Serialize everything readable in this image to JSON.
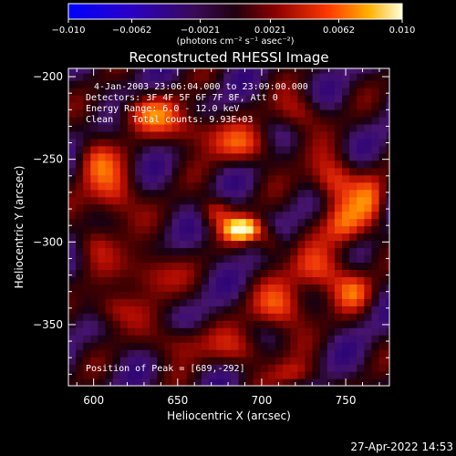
{
  "chart_data": {
    "type": "heatmap",
    "title": "Reconstructed RHESSI Image",
    "xlabel": "Heliocentric X (arcsec)",
    "ylabel": "Heliocentric Y (arcsec)",
    "xlim": [
      585,
      776
    ],
    "ylim": [
      -387,
      -195
    ],
    "x_ticks": [
      600,
      650,
      700,
      750
    ],
    "y_ticks": [
      -200,
      -250,
      -300,
      -350
    ],
    "colorbar": {
      "min": -0.01,
      "max": 0.01,
      "ticks": [
        -0.01,
        -0.0062,
        -0.0021,
        0.0021,
        0.0062,
        0.01
      ],
      "tick_labels": [
        "−0.010",
        "−0.0062",
        "−0.0021",
        "0.0021",
        "0.0062",
        "0.010"
      ],
      "unit_label": "(photons cm⁻² s⁻¹ asec⁻²)"
    },
    "annotations": {
      "time_range": "4-Jan-2003 23:06:04.000 to 23:09:00.000",
      "detectors": "Detectors: 3F 4F 5F 6F 7F 8F, Att 0",
      "energy_range": "Energy Range: 6.0 - 12.0 keV",
      "clean": "Clean",
      "total_counts": "Total counts: 9.93E+03",
      "peak": "Position of Peak = [689,-292]"
    },
    "peak": {
      "x": 689,
      "y": -292
    },
    "sources": [
      {
        "x": 689,
        "y": -292,
        "amp": 1.0,
        "sx": 8,
        "sy": 5
      },
      {
        "x": 672,
        "y": -281,
        "amp": 0.45,
        "sx": 7,
        "sy": 6
      },
      {
        "x": 705,
        "y": -300,
        "amp": 0.4,
        "sx": 6,
        "sy": 6
      },
      {
        "x": 612,
        "y": -272,
        "amp": 0.55,
        "sx": 10,
        "sy": 12
      },
      {
        "x": 600,
        "y": -250,
        "amp": 0.45,
        "sx": 8,
        "sy": 10
      },
      {
        "x": 632,
        "y": -222,
        "amp": 0.5,
        "sx": 14,
        "sy": 8
      },
      {
        "x": 660,
        "y": -232,
        "amp": 0.45,
        "sx": 12,
        "sy": 8
      },
      {
        "x": 690,
        "y": -242,
        "amp": 0.45,
        "sx": 14,
        "sy": 8
      },
      {
        "x": 722,
        "y": -222,
        "amp": 0.4,
        "sx": 10,
        "sy": 8
      },
      {
        "x": 742,
        "y": -262,
        "amp": 0.6,
        "sx": 10,
        "sy": 10
      },
      {
        "x": 750,
        "y": -290,
        "amp": 0.55,
        "sx": 9,
        "sy": 10
      },
      {
        "x": 765,
        "y": -275,
        "amp": 0.45,
        "sx": 7,
        "sy": 12
      },
      {
        "x": 735,
        "y": -318,
        "amp": 0.55,
        "sx": 12,
        "sy": 10
      },
      {
        "x": 712,
        "y": -340,
        "amp": 0.55,
        "sx": 12,
        "sy": 10
      },
      {
        "x": 755,
        "y": -330,
        "amp": 0.4,
        "sx": 8,
        "sy": 8
      },
      {
        "x": 632,
        "y": -318,
        "amp": 0.5,
        "sx": 12,
        "sy": 10
      },
      {
        "x": 610,
        "y": -340,
        "amp": 0.45,
        "sx": 10,
        "sy": 8
      },
      {
        "x": 650,
        "y": -360,
        "amp": 0.4,
        "sx": 12,
        "sy": 8
      },
      {
        "x": 690,
        "y": -365,
        "amp": 0.4,
        "sx": 12,
        "sy": 8
      },
      {
        "x": 720,
        "y": -380,
        "amp": 0.35,
        "sx": 10,
        "sy": 6
      },
      {
        "x": 600,
        "y": -300,
        "amp": 0.3,
        "sx": 8,
        "sy": 8
      }
    ]
  },
  "timestamp": "27-Apr-2022 14:53"
}
